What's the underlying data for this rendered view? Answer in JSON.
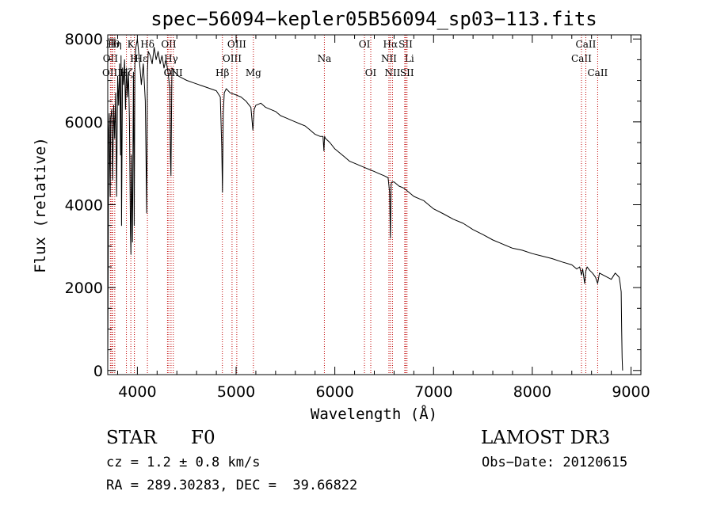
{
  "chart_data": {
    "type": "line",
    "title": "spec−56094−kepler05B56094_sp03−113.fits",
    "xlabel": "Wavelength (Å)",
    "ylabel": "Flux (relative)",
    "xlim": [
      3700,
      9100
    ],
    "ylim": [
      -100,
      8100
    ],
    "xticks": [
      4000,
      5000,
      6000,
      7000,
      8000,
      9000
    ],
    "yticks": [
      0,
      2000,
      4000,
      6000,
      8000
    ],
    "series": [
      {
        "name": "flux",
        "x": [
          3700,
          3705,
          3710,
          3715,
          3720,
          3725,
          3730,
          3740,
          3750,
          3760,
          3770,
          3780,
          3790,
          3800,
          3810,
          3820,
          3830,
          3835,
          3840,
          3850,
          3860,
          3870,
          3880,
          3890,
          3900,
          3910,
          3920,
          3930,
          3935,
          3940,
          3950,
          3960,
          3965,
          3968,
          3975,
          3985,
          4000,
          4020,
          4040,
          4060,
          4080,
          4095,
          4102,
          4110,
          4130,
          4150,
          4170,
          4190,
          4210,
          4230,
          4250,
          4270,
          4290,
          4310,
          4330,
          4335,
          4340,
          4345,
          4350,
          4380,
          4420,
          4460,
          4500,
          4560,
          4620,
          4680,
          4740,
          4800,
          4840,
          4855,
          4862,
          4870,
          4880,
          4900,
          4940,
          5000,
          5050,
          5100,
          5150,
          5170,
          5183,
          5200,
          5250,
          5300,
          5350,
          5400,
          5450,
          5500,
          5550,
          5600,
          5650,
          5700,
          5750,
          5800,
          5850,
          5880,
          5890,
          5896,
          5905,
          5950,
          6000,
          6050,
          6100,
          6150,
          6200,
          6250,
          6300,
          6350,
          6400,
          6450,
          6500,
          6540,
          6555,
          6563,
          6570,
          6580,
          6600,
          6650,
          6700,
          6750,
          6800,
          6850,
          6900,
          6950,
          7000,
          7100,
          7200,
          7300,
          7400,
          7500,
          7600,
          7700,
          7800,
          7900,
          8000,
          8100,
          8200,
          8300,
          8400,
          8450,
          8480,
          8498,
          8510,
          8530,
          8542,
          8555,
          8580,
          8610,
          8640,
          8662,
          8680,
          8720,
          8760,
          8800,
          8840,
          8860,
          8880,
          8890,
          8900,
          8905,
          8910,
          8915
        ],
        "y": [
          100,
          2600,
          5800,
          6200,
          5000,
          4200,
          6100,
          6300,
          4600,
          6400,
          5600,
          6700,
          4200,
          7100,
          6400,
          7400,
          5200,
          7600,
          3500,
          7300,
          6900,
          7500,
          6300,
          7300,
          6600,
          7200,
          6000,
          3300,
          2800,
          5200,
          3100,
          7200,
          5400,
          3500,
          7400,
          7800,
          8000,
          7500,
          6900,
          7400,
          6500,
          3800,
          7200,
          7700,
          7600,
          7400,
          7800,
          7500,
          7700,
          7400,
          7600,
          7300,
          7500,
          7200,
          6800,
          5200,
          4700,
          6000,
          7300,
          7200,
          7100,
          7050,
          7000,
          6950,
          6900,
          6850,
          6800,
          6750,
          6600,
          5400,
          4300,
          6200,
          6700,
          6800,
          6700,
          6650,
          6600,
          6500,
          6350,
          5800,
          6300,
          6400,
          6450,
          6350,
          6300,
          6250,
          6150,
          6100,
          6050,
          6000,
          5950,
          5900,
          5800,
          5700,
          5650,
          5650,
          5300,
          5650,
          5600,
          5500,
          5350,
          5250,
          5150,
          5050,
          5000,
          4950,
          4900,
          4850,
          4800,
          4750,
          4700,
          4650,
          4300,
          3200,
          4500,
          4550,
          4550,
          4450,
          4400,
          4300,
          4200,
          4150,
          4100,
          4000,
          3900,
          3780,
          3650,
          3550,
          3400,
          3280,
          3150,
          3050,
          2950,
          2900,
          2820,
          2760,
          2700,
          2620,
          2550,
          2450,
          2500,
          2300,
          2450,
          2100,
          2400,
          2500,
          2420,
          2350,
          2250,
          2100,
          2350,
          2300,
          2250,
          2200,
          2350,
          2300,
          2250,
          2100,
          1900,
          1000,
          300,
          0
        ]
      }
    ],
    "lines": [
      {
        "name": "OII",
        "x": 3727,
        "row": 1,
        "align": "mid"
      },
      {
        "name": "OIII",
        "x": 3740,
        "row": 2,
        "align": "mid"
      },
      {
        "name": "Hθ",
        "x": 3750,
        "row": 0,
        "align": "mid"
      },
      {
        "name": "Hη",
        "x": 3771,
        "row": 0,
        "align": "mid"
      },
      {
        "name": "Hζ",
        "x": 3889,
        "row": 2,
        "align": "mid"
      },
      {
        "name": "K",
        "x": 3934,
        "row": 0,
        "align": "mid"
      },
      {
        "name": "H",
        "x": 3969,
        "row": 1,
        "align": "mid"
      },
      {
        "name": "Hε",
        "x": 3970,
        "row": 1,
        "align": "start"
      },
      {
        "name": "Hδ",
        "x": 4102,
        "row": 0,
        "align": "mid"
      },
      {
        "name": "G",
        "x": 4305,
        "row": 2,
        "align": "mid"
      },
      {
        "name": "OII",
        "x": 4318,
        "row": 0,
        "align": "mid"
      },
      {
        "name": "Hγ",
        "x": 4341,
        "row": 1,
        "align": "mid"
      },
      {
        "name": "OIII",
        "x": 4364,
        "row": 2,
        "align": "mid"
      },
      {
        "name": "Hβ",
        "x": 4861,
        "row": 2,
        "align": "mid"
      },
      {
        "name": "OIII",
        "x": 4959,
        "row": 1,
        "align": "mid"
      },
      {
        "name": "OIII",
        "x": 5007,
        "row": 0,
        "align": "mid"
      },
      {
        "name": "Mg",
        "x": 5175,
        "row": 2,
        "align": "mid"
      },
      {
        "name": "Na",
        "x": 5894,
        "row": 1,
        "align": "mid"
      },
      {
        "name": "OI",
        "x": 6300,
        "row": 0,
        "align": "mid"
      },
      {
        "name": "OI",
        "x": 6364,
        "row": 2,
        "align": "mid"
      },
      {
        "name": "Hα",
        "x": 6563,
        "row": 0,
        "align": "mid"
      },
      {
        "name": "NII",
        "x": 6548,
        "row": 1,
        "align": "mid"
      },
      {
        "name": "NII",
        "x": 6584,
        "row": 2,
        "align": "mid"
      },
      {
        "name": "SII",
        "x": 6717,
        "row": 0,
        "align": "mid"
      },
      {
        "name": "Li",
        "x": 6708,
        "row": 1,
        "align": "start"
      },
      {
        "name": "SII",
        "x": 6731,
        "row": 2,
        "align": "mid"
      },
      {
        "name": "CaII",
        "x": 8498,
        "row": 1,
        "align": "mid"
      },
      {
        "name": "CaII",
        "x": 8542,
        "row": 0,
        "align": "mid"
      },
      {
        "name": "CaII",
        "x": 8662,
        "row": 2,
        "align": "mid"
      }
    ]
  },
  "info": {
    "class": "STAR",
    "subclass": "F0",
    "survey": "LAMOST DR3",
    "cz": "cz = 1.2 ± 0.8 km/s",
    "obs_date": "Obs−Date: 20120615",
    "coords": "RA = 289.30283, DEC =  39.66822"
  }
}
